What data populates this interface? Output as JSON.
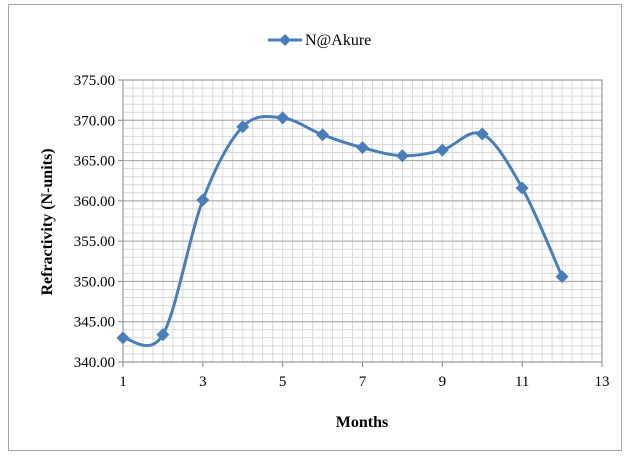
{
  "chart_data": {
    "type": "line",
    "title": "",
    "xlabel": "Months",
    "ylabel": "Refractivity (N-units)",
    "xlim": [
      1,
      13
    ],
    "ylim": [
      340,
      375
    ],
    "x_ticks": [
      "1",
      "3",
      "5",
      "7",
      "9",
      "11",
      "13"
    ],
    "y_ticks": [
      "340.00",
      "345.00",
      "350.00",
      "355.00",
      "360.00",
      "365.00",
      "370.00",
      "375.00"
    ],
    "x_tick_values": [
      1,
      3,
      5,
      7,
      9,
      11,
      13
    ],
    "y_tick_values": [
      340,
      345,
      350,
      355,
      360,
      365,
      370,
      375
    ],
    "x_minor_step": 0.25,
    "y_minor_step": 1,
    "grid": true,
    "legend_position": "top",
    "series": [
      {
        "name": "N@Akure",
        "color": "#4a7ebb",
        "marker": "diamond",
        "smooth": true,
        "x": [
          1,
          2,
          3,
          4,
          5,
          6,
          7,
          8,
          9,
          10,
          11,
          12
        ],
        "y": [
          343.0,
          343.4,
          360.1,
          369.2,
          370.3,
          368.2,
          366.6,
          365.6,
          366.3,
          368.3,
          361.6,
          350.6
        ]
      }
    ]
  }
}
